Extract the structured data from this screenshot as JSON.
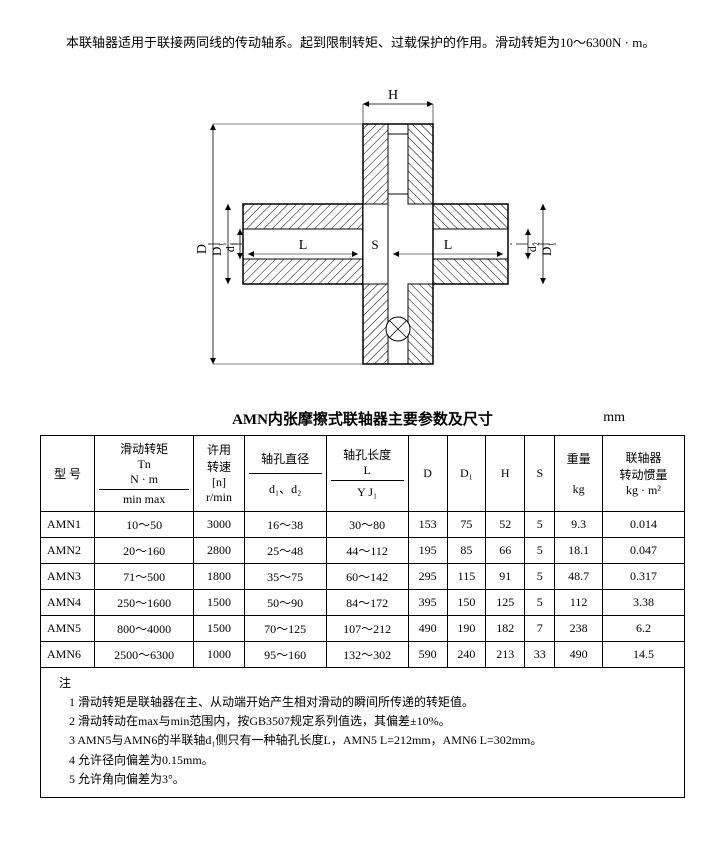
{
  "intro": "本联轴器适用于联接两同线的传动轴系。起到限制转矩、过载保护的作用。滑动转矩为10～6300N · m。",
  "diagram": {
    "labels": {
      "H": "H",
      "D": "D",
      "D1": "D₁",
      "d1": "d₁",
      "d2": "d₂",
      "L": "L",
      "S": "S"
    },
    "stroke": "#000000",
    "hatch": "#000000",
    "fill": "#ffffff"
  },
  "table": {
    "title": "AMN内张摩擦式联轴器主要参数及尺寸",
    "unit": "mm",
    "headers": {
      "model": "型  号",
      "tn_top": "滑动转矩",
      "tn_mid": "Tn",
      "tn_unit": "N · m",
      "tn_sub": "min  max",
      "n_top": "许用",
      "n_mid": "转速",
      "n_brk": "[n]",
      "n_unit": "r/min",
      "bore": "轴孔直径",
      "bore_sub": "d₁、d₂",
      "len": "轴孔长度",
      "len_mid": "L",
      "len_sub": "Y    J₁",
      "D": "D",
      "D1": "D₁",
      "H": "H",
      "S": "S",
      "wt": "重量",
      "wt_unit": "kg",
      "inertia": "联轴器",
      "inertia2": "转动惯量",
      "inertia_unit": "kg · m²"
    },
    "rows": [
      {
        "model": "AMN1",
        "tn": "10～50",
        "n": "3000",
        "bore": "16～38",
        "len": "30～80",
        "D": "153",
        "D1": "75",
        "H": "52",
        "S": "5",
        "wt": "9.3",
        "inertia": "0.014"
      },
      {
        "model": "AMN2",
        "tn": "20～160",
        "n": "2800",
        "bore": "25～48",
        "len": "44～112",
        "D": "195",
        "D1": "85",
        "H": "66",
        "S": "5",
        "wt": "18.1",
        "inertia": "0.047"
      },
      {
        "model": "AMN3",
        "tn": "71～500",
        "n": "1800",
        "bore": "35～75",
        "len": "60～142",
        "D": "295",
        "D1": "115",
        "H": "91",
        "S": "5",
        "wt": "48.7",
        "inertia": "0.317"
      },
      {
        "model": "AMN4",
        "tn": "250～1600",
        "n": "1500",
        "bore": "50～90",
        "len": "84～172",
        "D": "395",
        "D1": "150",
        "H": "125",
        "S": "5",
        "wt": "112",
        "inertia": "3.38"
      },
      {
        "model": "AMN5",
        "tn": "800～4000",
        "n": "1500",
        "bore": "70～125",
        "len": "107～212",
        "D": "490",
        "D1": "190",
        "H": "182",
        "S": "7",
        "wt": "238",
        "inertia": "6.2"
      },
      {
        "model": "AMN6",
        "tn": "2500～6300",
        "n": "1000",
        "bore": "95～160",
        "len": "132～302",
        "D": "590",
        "D1": "240",
        "H": "213",
        "S": "33",
        "wt": "490",
        "inertia": "14.5"
      }
    ]
  },
  "notes": {
    "hd": "注",
    "items": [
      "1  滑动转矩是联轴器在主、从动端开始产生相对滑动的瞬间所传递的转矩值。",
      "2  滑动转动在max与min范围内，按GB3507规定系列值选，其偏差±10%。",
      "3  AMN5与AMN6的半联轴d₁侧只有一种轴孔长度L，AMN5  L=212mm，AMN6  L=302mm。",
      "4  允许径向偏差为0.15mm。",
      "5  允许角向偏差为3°。"
    ]
  }
}
